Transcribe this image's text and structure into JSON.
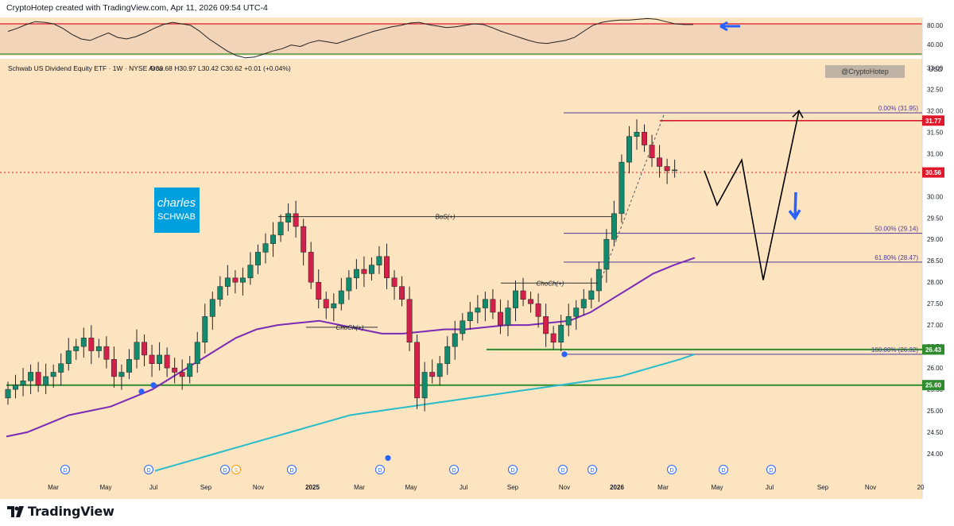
{
  "header": {
    "credit": "CryptoHotep created with TradingView.com, Apr 11, 2026 09:54 UTC-4"
  },
  "legend": {
    "symbol": "Schwab US Dividend Equity ETF · 1W · NYSE Arca",
    "ohlc": "O30.68  H30.97  L30.42  C30.62  +0.01 (+0.04%)"
  },
  "watermark": "@CryptoHotep",
  "currency": "USD",
  "logo": {
    "line1": "charles",
    "line2": "SCHWAB"
  },
  "footer": {
    "brand": "TradingView"
  },
  "colors": {
    "background": "#fde4c0",
    "up": "#138a6e",
    "down": "#d3204b",
    "ma_slow": "#26bccb",
    "ma_mid": "#7a2ab5",
    "support": "#2e8b2e",
    "resistance": "#e0182c",
    "fib": "#4a3a9a",
    "projection": "#000000",
    "arrow": "#2962ff",
    "dividend": "#2962ff"
  },
  "chart_data": [
    {
      "type": "line",
      "title": "RSI",
      "y_ticks": [
        "80.00",
        "40.00"
      ],
      "levels": [
        80,
        40
      ],
      "values": [
        70,
        74,
        79,
        83,
        82,
        80,
        74,
        66,
        60,
        58,
        63,
        68,
        62,
        60,
        63,
        68,
        74,
        79,
        82,
        80,
        78,
        70,
        60,
        52,
        44,
        38,
        35,
        36,
        40,
        44,
        47,
        52,
        50,
        55,
        58,
        56,
        54,
        58,
        62,
        66,
        70,
        73,
        76,
        78,
        81,
        82,
        79,
        77,
        75,
        76,
        78,
        80,
        79,
        75,
        70,
        66,
        62,
        58,
        55,
        54,
        56,
        58,
        62,
        70,
        78,
        82,
        84,
        85,
        85,
        86,
        87,
        86,
        83,
        80,
        79,
        79
      ]
    },
    {
      "type": "candlestick",
      "y_axis": {
        "min": 23.5,
        "max": 33.1,
        "ticks": [
          "24.00",
          "24.50",
          "25.00",
          "25.50",
          "26.00",
          "26.50",
          "27.00",
          "27.50",
          "28.00",
          "28.50",
          "29.00",
          "29.50",
          "30.00",
          "30.50",
          "31.00",
          "31.50",
          "32.00",
          "32.50",
          "33.00"
        ]
      },
      "x_ticks": [
        "Mar",
        "May",
        "Jul",
        "Sep",
        "Nov",
        "2025",
        "Mar",
        "May",
        "Jul",
        "Sep",
        "Nov",
        "2026",
        "Mar",
        "May",
        "Jul",
        "Sep",
        "Nov",
        "20"
      ],
      "ohlc_closes": [
        25.5,
        25.6,
        25.7,
        25.9,
        25.6,
        25.8,
        25.9,
        26.1,
        26.4,
        26.5,
        26.7,
        26.4,
        26.5,
        26.2,
        25.8,
        25.9,
        26.2,
        26.6,
        26.3,
        26.1,
        26.3,
        26.0,
        25.9,
        25.8,
        26.1,
        26.6,
        27.2,
        27.6,
        27.9,
        28.1,
        28.0,
        28.1,
        28.4,
        28.7,
        28.9,
        29.1,
        29.4,
        29.6,
        29.3,
        28.7,
        28.0,
        27.6,
        27.4,
        27.5,
        27.8,
        28.1,
        28.3,
        28.2,
        28.4,
        28.6,
        28.1,
        27.9,
        27.6,
        26.6,
        25.3,
        25.9,
        25.8,
        26.1,
        26.5,
        26.8,
        27.1,
        27.3,
        27.4,
        27.6,
        27.3,
        27.0,
        27.4,
        27.8,
        27.6,
        27.5,
        27.2,
        26.8,
        26.6,
        27.0,
        27.2,
        27.4,
        27.6,
        27.8,
        28.3,
        29.0,
        29.6,
        30.8,
        31.4,
        31.5,
        31.2,
        30.9,
        30.7,
        30.6,
        30.62
      ],
      "series": [
        {
          "name": "MA slow",
          "color": "#26bccb",
          "values": [
            23.6,
            23.7,
            23.8,
            23.9,
            24.0,
            24.1,
            24.2,
            24.3,
            24.4,
            24.5,
            24.6,
            24.7,
            24.8,
            24.9,
            24.95,
            25.0,
            25.05,
            25.1,
            25.15,
            25.2,
            25.25,
            25.3,
            25.35,
            25.4,
            25.45,
            25.5,
            25.55,
            25.6,
            25.65,
            25.7,
            25.75,
            25.8,
            25.9,
            26.0,
            26.1,
            26.2,
            26.32
          ]
        },
        {
          "name": "MA mid",
          "color": "#7a2ab5",
          "values": [
            24.4,
            24.5,
            24.7,
            24.9,
            25.0,
            25.1,
            25.3,
            25.5,
            25.8,
            26.1,
            26.4,
            26.7,
            26.9,
            27.0,
            27.05,
            27.1,
            27.0,
            26.9,
            26.8,
            26.8,
            26.85,
            26.9,
            26.9,
            26.95,
            27.0,
            27.0,
            27.05,
            27.1,
            27.3,
            27.6,
            27.9,
            28.2,
            28.4,
            28.57
          ]
        }
      ],
      "price_labels": [
        "31.77",
        "30.56",
        "26.43",
        "25.60"
      ],
      "fib_levels": [
        {
          "label": "0.00% (31.95)",
          "value": 31.95
        },
        {
          "label": "50.00% (29.14)",
          "value": 29.14
        },
        {
          "label": "61.80% (28.47)",
          "value": 28.47
        },
        {
          "label": "100.00% (26.32)",
          "value": 26.32
        }
      ],
      "annotations": [
        "BoS(+)",
        "ChoCh(+)",
        "ChoCh(+)"
      ],
      "dividend_markers": [
        "D",
        "D",
        "D",
        "S",
        "D",
        "D",
        "D",
        "D",
        "D",
        "D",
        "D",
        "D",
        "D"
      ],
      "projection_path": [
        30.6,
        29.8,
        30.85,
        28.05,
        32.0
      ]
    }
  ]
}
